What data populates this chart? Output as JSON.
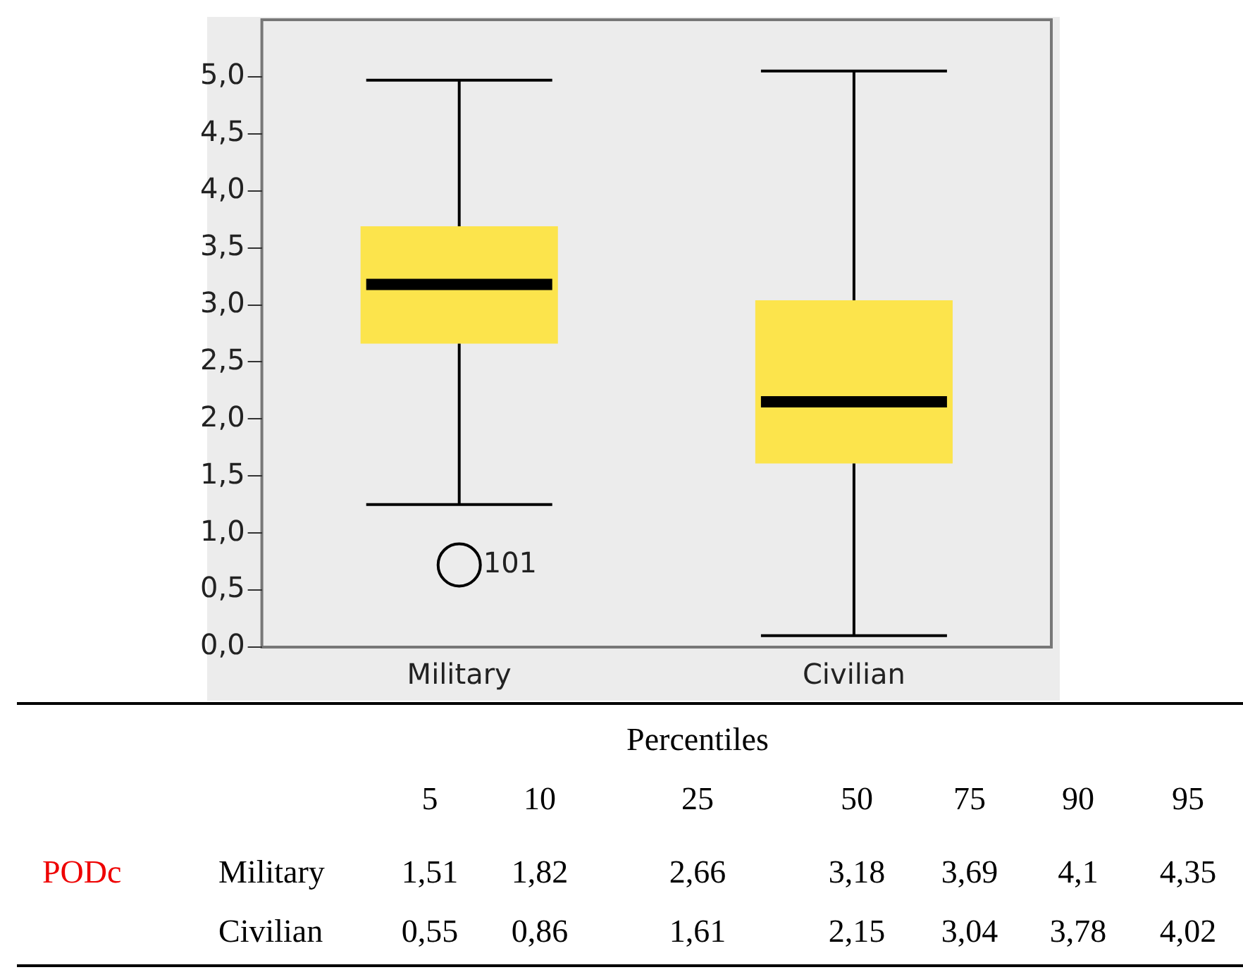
{
  "chart_data": {
    "type": "box",
    "categories": [
      "Military",
      "Civilian"
    ],
    "boxes": [
      {
        "low": 1.25,
        "q1": 2.66,
        "median": 3.18,
        "q3": 3.69,
        "high": 4.97,
        "outliers": [
          0.72
        ]
      },
      {
        "low": 0.1,
        "q1": 1.61,
        "median": 2.15,
        "q3": 3.04,
        "high": 5.05
      }
    ],
    "color": "#fce44c",
    "ylim": [
      0,
      5.5
    ],
    "yticks": [
      {
        "value": 0,
        "label": "0,0"
      },
      {
        "value": 0.5,
        "label": "0,5"
      },
      {
        "value": 1,
        "label": "1,0"
      },
      {
        "value": 1.5,
        "label": "1,5"
      },
      {
        "value": 2,
        "label": "2,0"
      },
      {
        "value": 2.5,
        "label": "2,5"
      },
      {
        "value": 3,
        "label": "3,0"
      },
      {
        "value": 3.5,
        "label": "3,5"
      },
      {
        "value": 4,
        "label": "4,0"
      },
      {
        "value": 4.5,
        "label": "4,5"
      },
      {
        "value": 5,
        "label": "5,0"
      }
    ],
    "grid": false,
    "legend": false,
    "annotations": [
      "101",
      "Percentiles",
      "\t\t5\t10\t25\t50\t75\t90\t95",
      "PODc\tMilitary\t1,51\t1,82\t2,66\t3,18\t3,69\t4,1\t4,35",
      "\tCivilian\t0,55\t0,86\t1,61\t2,15\t3,04\t3,78\t4,02"
    ]
  }
}
